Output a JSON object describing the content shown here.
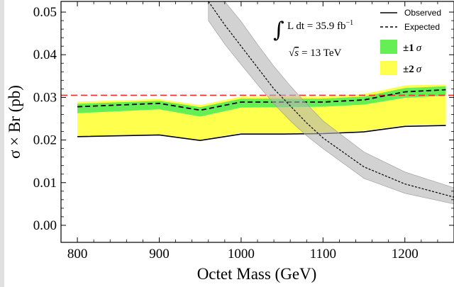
{
  "chart_data": {
    "type": "line",
    "xlabel": "Octet Mass (GeV)",
    "ylabel": "σ × Br (pb)",
    "xlim": [
      780,
      1260
    ],
    "ylim": [
      -0.004,
      0.0525
    ],
    "x_ticks": [
      800,
      900,
      1000,
      1100,
      1200
    ],
    "x_tick_labels": [
      "800",
      "900",
      "1000",
      "1100",
      "1200"
    ],
    "y_ticks": [
      0.0,
      0.01,
      0.02,
      0.03,
      0.04,
      0.05
    ],
    "y_tick_labels": [
      "0.00",
      "0.01",
      "0.02",
      "0.03",
      "0.04",
      "0.05"
    ],
    "grid": false,
    "legend_position": "top-right",
    "annotation": {
      "lumi_prefix": "L dt = 35.9 fb",
      "lumi_exponent": "−1",
      "energy_value": "= 13 TeV",
      "energy_symbol": "s"
    },
    "legend": {
      "observed": "Observed",
      "expected": "Expected",
      "one_sigma_prefix": "±1",
      "two_sigma_prefix": "±2",
      "sigma_symbol": "σ"
    },
    "series": [
      {
        "name": "Observed",
        "style": "solid",
        "color": "#000000",
        "x": [
          800,
          900,
          950,
          1000,
          1050,
          1100,
          1150,
          1200,
          1250
        ],
        "y": [
          0.0208,
          0.0212,
          0.0199,
          0.0214,
          0.0214,
          0.0215,
          0.0219,
          0.0232,
          0.0234
        ]
      },
      {
        "name": "Expected",
        "style": "dashed",
        "color": "#000000",
        "x": [
          800,
          900,
          950,
          1000,
          1050,
          1100,
          1150,
          1200,
          1250
        ],
        "y": [
          0.0278,
          0.0286,
          0.027,
          0.0289,
          0.0289,
          0.0289,
          0.0294,
          0.0313,
          0.0318
        ]
      },
      {
        "name": "±1 σ",
        "style": "band",
        "color": "#66ee55",
        "x": [
          800,
          900,
          950,
          1000,
          1050,
          1100,
          1150,
          1200,
          1250
        ],
        "upper": [
          0.0285,
          0.0292,
          0.0277,
          0.0297,
          0.0297,
          0.0297,
          0.0302,
          0.0322,
          0.0326
        ],
        "lower": [
          0.0263,
          0.0272,
          0.0255,
          0.0276,
          0.0277,
          0.0278,
          0.0283,
          0.0299,
          0.0304
        ]
      },
      {
        "name": "±2 σ",
        "style": "band",
        "color": "#ffff4d",
        "x": [
          800,
          900,
          950,
          1000,
          1050,
          1100,
          1150,
          1200,
          1250
        ],
        "upper": [
          0.029,
          0.0296,
          0.0282,
          0.0302,
          0.0302,
          0.0302,
          0.0308,
          0.0328,
          0.033
        ],
        "lower": [
          0.021,
          0.0214,
          0.0201,
          0.0217,
          0.0217,
          0.0218,
          0.0222,
          0.0235,
          0.0238
        ]
      },
      {
        "style": "dashed",
        "color": "#e8322a",
        "x": [
          780,
          1260
        ],
        "y": [
          0.0305,
          0.0305
        ]
      },
      {
        "style": "dotted-with-band",
        "color": "#000000",
        "band_color": "#b4b4b4",
        "x": [
          960,
          980,
          1000,
          1020,
          1040,
          1060,
          1080,
          1100,
          1150,
          1200,
          1260
        ],
        "y": [
          0.0525,
          0.047,
          0.042,
          0.037,
          0.032,
          0.028,
          0.024,
          0.0205,
          0.0137,
          0.0097,
          0.0066
        ],
        "upper": [
          0.0525,
          0.0525,
          0.0478,
          0.0424,
          0.0373,
          0.0327,
          0.0285,
          0.0245,
          0.0172,
          0.0125,
          0.0088
        ],
        "lower": [
          0.048,
          0.0425,
          0.0377,
          0.033,
          0.0285,
          0.0245,
          0.021,
          0.018,
          0.011,
          0.0075,
          0.005
        ]
      }
    ]
  }
}
